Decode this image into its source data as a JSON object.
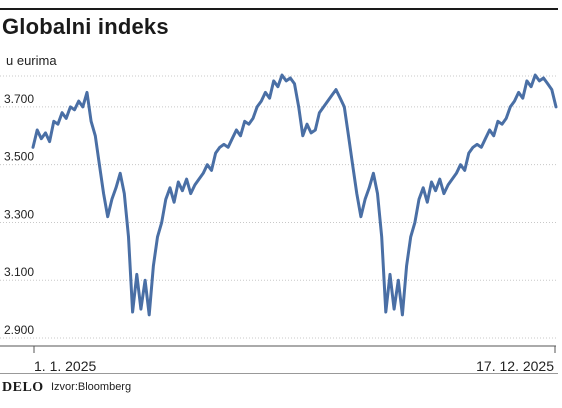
{
  "header": {
    "title": "Globalni indeks",
    "subtitle": "u eurima"
  },
  "footer": {
    "brand": "DELO",
    "source": "Izvor:Bloomberg"
  },
  "colors": {
    "line": "#4a6fa5",
    "grid": "#c8c8c8",
    "text": "#222222"
  },
  "chart_data": {
    "type": "line",
    "title": "Globalni indeks",
    "subtitle": "u eurima",
    "ylim": [
      2900,
      3800
    ],
    "yticks": [
      3700,
      3500,
      3300,
      3100,
      2900
    ],
    "ytick_labels": [
      "3.700",
      "3.500",
      "3.300",
      "3.100",
      "2.900"
    ],
    "x_labels": [
      "1. 1. 2025",
      "17. 12. 2025"
    ],
    "grid": "horizontal dotted",
    "series": [
      {
        "values": [
          3560,
          3620,
          3590,
          3610,
          3580,
          3650,
          3640,
          3680,
          3660,
          3700,
          3690,
          3720,
          3700,
          3750,
          3650,
          3600,
          3500,
          3400,
          3320,
          3380,
          3420,
          3470,
          3400,
          3250,
          2990,
          3120,
          3000,
          3100,
          2980,
          3150,
          3250,
          3300,
          3380,
          3420,
          3370,
          3440,
          3410,
          3450,
          3400,
          3430,
          3450,
          3470,
          3500,
          3480,
          3540,
          3560,
          3570,
          3560,
          3590,
          3620,
          3600,
          3650,
          3640,
          3660,
          3700,
          3720,
          3750,
          3730,
          3790,
          3770,
          3810,
          3790,
          3800,
          3780,
          3700,
          3600,
          3640,
          3610,
          3620,
          3680,
          3700,
          3720,
          3740,
          3760,
          3730,
          3700,
          3600,
          3500,
          3400,
          3320,
          3380,
          3420,
          3470,
          3400,
          3250,
          2990,
          3120,
          3000,
          3100,
          2980,
          3150,
          3250,
          3300,
          3380,
          3420,
          3370,
          3440,
          3410,
          3450,
          3400,
          3430,
          3450,
          3470,
          3500,
          3480,
          3540,
          3560,
          3570,
          3560,
          3590,
          3620,
          3600,
          3650,
          3640,
          3660,
          3700,
          3720,
          3750,
          3730,
          3790,
          3770,
          3810,
          3790,
          3800,
          3780,
          3760,
          3700
        ]
      }
    ]
  }
}
